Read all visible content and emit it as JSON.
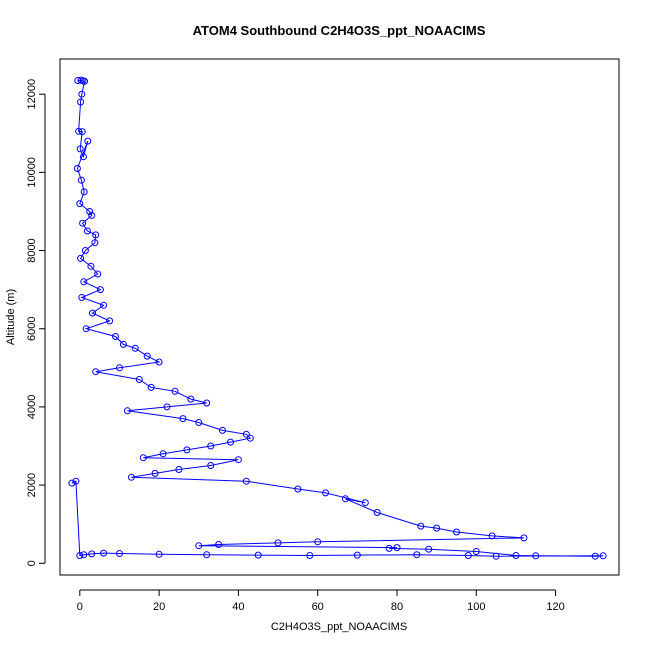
{
  "chart_data": {
    "type": "scatter",
    "title": "ATOM4 Southbound C2H4O3S_ppt_NOAACIMS",
    "xlabel": "C2H4O3S_ppt_NOAACIMS",
    "ylabel": "Altitude (m)",
    "xlim": [
      -5,
      136
    ],
    "ylim": [
      -300,
      12900
    ],
    "x_ticks": [
      0,
      20,
      40,
      60,
      80,
      100,
      120
    ],
    "y_ticks": [
      0,
      2000,
      4000,
      6000,
      8000,
      10000,
      12000
    ],
    "x_tick_labels": [
      "0",
      "20",
      "40",
      "60",
      "80",
      "100",
      "120"
    ],
    "y_tick_labels": [
      "0",
      "2000",
      "4000",
      "6000",
      "8000",
      "10000",
      "12000"
    ],
    "marker": "open-circle",
    "connected": true,
    "grid": false,
    "color": "#0000ff",
    "points": [
      {
        "x": -0.5,
        "y": 12350
      },
      {
        "x": 0.3,
        "y": 12360
      },
      {
        "x": 0.8,
        "y": 12340
      },
      {
        "x": 1.2,
        "y": 12330
      },
      {
        "x": 0.5,
        "y": 12000
      },
      {
        "x": 0.2,
        "y": 11800
      },
      {
        "x": -0.3,
        "y": 11050
      },
      {
        "x": 0.6,
        "y": 11040
      },
      {
        "x": 0.1,
        "y": 10600
      },
      {
        "x": 0.9,
        "y": 10400
      },
      {
        "x": 2.0,
        "y": 10800
      },
      {
        "x": -0.6,
        "y": 10100
      },
      {
        "x": 0.4,
        "y": 9800
      },
      {
        "x": 1.1,
        "y": 9500
      },
      {
        "x": 0.0,
        "y": 9200
      },
      {
        "x": 2.5,
        "y": 9000
      },
      {
        "x": 3.0,
        "y": 8900
      },
      {
        "x": 0.7,
        "y": 8700
      },
      {
        "x": 1.9,
        "y": 8500
      },
      {
        "x": 4.0,
        "y": 8400
      },
      {
        "x": 3.8,
        "y": 8200
      },
      {
        "x": 1.4,
        "y": 8000
      },
      {
        "x": 0.2,
        "y": 7800
      },
      {
        "x": 2.8,
        "y": 7600
      },
      {
        "x": 4.5,
        "y": 7400
      },
      {
        "x": 1.0,
        "y": 7200
      },
      {
        "x": 5.2,
        "y": 7000
      },
      {
        "x": 0.5,
        "y": 6800
      },
      {
        "x": 6.0,
        "y": 6600
      },
      {
        "x": 3.2,
        "y": 6400
      },
      {
        "x": 7.5,
        "y": 6200
      },
      {
        "x": 1.6,
        "y": 6000
      },
      {
        "x": 9.0,
        "y": 5800
      },
      {
        "x": 11.0,
        "y": 5600
      },
      {
        "x": 14.0,
        "y": 5500
      },
      {
        "x": 17.0,
        "y": 5300
      },
      {
        "x": 20.0,
        "y": 5150
      },
      {
        "x": 10.0,
        "y": 5000
      },
      {
        "x": 4.0,
        "y": 4900
      },
      {
        "x": 15.0,
        "y": 4700
      },
      {
        "x": 18.0,
        "y": 4500
      },
      {
        "x": 24.0,
        "y": 4400
      },
      {
        "x": 28.0,
        "y": 4200
      },
      {
        "x": 32.0,
        "y": 4100
      },
      {
        "x": 22.0,
        "y": 4000
      },
      {
        "x": 12.0,
        "y": 3900
      },
      {
        "x": 26.0,
        "y": 3700
      },
      {
        "x": 30.0,
        "y": 3600
      },
      {
        "x": 36.0,
        "y": 3400
      },
      {
        "x": 42.0,
        "y": 3300
      },
      {
        "x": 43.0,
        "y": 3200
      },
      {
        "x": 38.0,
        "y": 3100
      },
      {
        "x": 33.0,
        "y": 3000
      },
      {
        "x": 27.0,
        "y": 2900
      },
      {
        "x": 21.0,
        "y": 2800
      },
      {
        "x": 16.0,
        "y": 2700
      },
      {
        "x": 40.0,
        "y": 2650
      },
      {
        "x": 33.0,
        "y": 2500
      },
      {
        "x": 25.0,
        "y": 2400
      },
      {
        "x": 19.0,
        "y": 2300
      },
      {
        "x": 13.0,
        "y": 2200
      },
      {
        "x": 42.0,
        "y": 2100
      },
      {
        "x": 55.0,
        "y": 1900
      },
      {
        "x": 62.0,
        "y": 1800
      },
      {
        "x": 72.0,
        "y": 1550
      },
      {
        "x": 67.0,
        "y": 1650
      },
      {
        "x": 75.0,
        "y": 1300
      },
      {
        "x": 86.0,
        "y": 950
      },
      {
        "x": 90.0,
        "y": 900
      },
      {
        "x": 95.0,
        "y": 800
      },
      {
        "x": 104.0,
        "y": 700
      },
      {
        "x": 112.0,
        "y": 650
      },
      {
        "x": 60.0,
        "y": 550
      },
      {
        "x": 50.0,
        "y": 520
      },
      {
        "x": 35.0,
        "y": 480
      },
      {
        "x": 30.0,
        "y": 450
      },
      {
        "x": 80.0,
        "y": 400
      },
      {
        "x": 78.0,
        "y": 380
      },
      {
        "x": 88.0,
        "y": 360
      },
      {
        "x": 100.0,
        "y": 300
      },
      {
        "x": 110.0,
        "y": 200
      },
      {
        "x": 115.0,
        "y": 190
      },
      {
        "x": 130.0,
        "y": 180
      },
      {
        "x": 132.0,
        "y": 190
      },
      {
        "x": 105.0,
        "y": 180
      },
      {
        "x": 98.0,
        "y": 200
      },
      {
        "x": 85.0,
        "y": 220
      },
      {
        "x": 70.0,
        "y": 210
      },
      {
        "x": 58.0,
        "y": 200
      },
      {
        "x": 45.0,
        "y": 210
      },
      {
        "x": 32.0,
        "y": 220
      },
      {
        "x": 20.0,
        "y": 230
      },
      {
        "x": 10.0,
        "y": 250
      },
      {
        "x": 6.0,
        "y": 260
      },
      {
        "x": 3.0,
        "y": 240
      },
      {
        "x": 1.0,
        "y": 220
      },
      {
        "x": 0.0,
        "y": 200
      },
      {
        "x": -1.0,
        "y": 2100
      },
      {
        "x": -2.0,
        "y": 2050
      }
    ]
  }
}
